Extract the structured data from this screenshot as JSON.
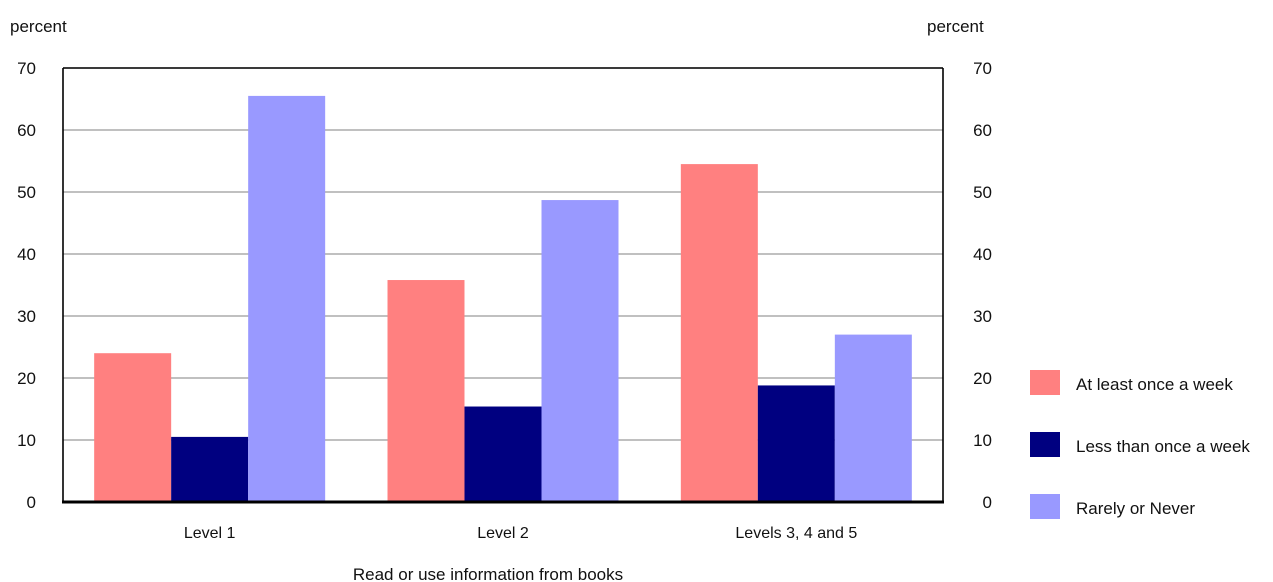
{
  "chart_data": {
    "type": "bar",
    "title": "",
    "y_unit_left": "percent",
    "y_unit_right": "percent",
    "xlabel": "Read or use information from books",
    "ylabel": "percent",
    "ylim": [
      0,
      70
    ],
    "yticks": [
      0,
      10,
      20,
      30,
      40,
      50,
      60,
      70
    ],
    "grid": true,
    "legend_position": "right",
    "categories": [
      "Level 1",
      "Level 2",
      "Levels 3, 4 and 5"
    ],
    "series": [
      {
        "name": "At least once a week",
        "color": "#ff8080",
        "values": [
          24,
          35.8,
          54.5
        ]
      },
      {
        "name": "Less than once a week",
        "color": "#000080",
        "values": [
          10.5,
          15.4,
          18.8
        ]
      },
      {
        "name": "Rarely or Never",
        "color": "#9999ff",
        "values": [
          65.5,
          48.7,
          27
        ]
      }
    ]
  }
}
